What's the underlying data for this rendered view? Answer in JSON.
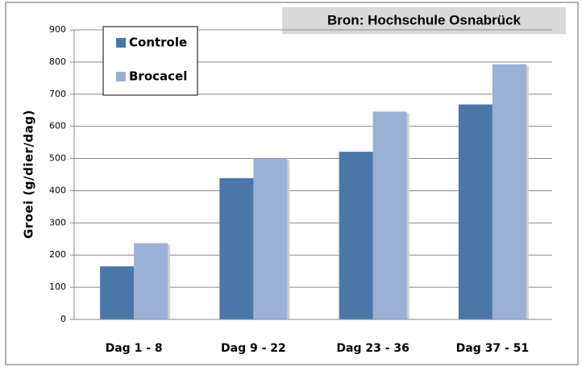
{
  "chart_data": {
    "type": "bar",
    "source": "Bron: Hochschule Osnabrück",
    "y_label": "Groei (g/dier/dag)",
    "categories": [
      "Dag 1 - 8",
      "Dag 9 - 22",
      "Dag 23 - 36",
      "Dag 37 - 51"
    ],
    "series": [
      {
        "name": "Controle",
        "color": "#4a76a8",
        "values": [
          165,
          439,
          521,
          668
        ]
      },
      {
        "name": "Brocacel",
        "color": "#9bb0d5",
        "values": [
          237,
          500,
          646,
          793
        ]
      }
    ],
    "ylim": [
      0,
      900
    ],
    "yticks": [
      0,
      100,
      200,
      300,
      400,
      500,
      600,
      700,
      800,
      900
    ],
    "grid": true,
    "legend": "top-left"
  }
}
